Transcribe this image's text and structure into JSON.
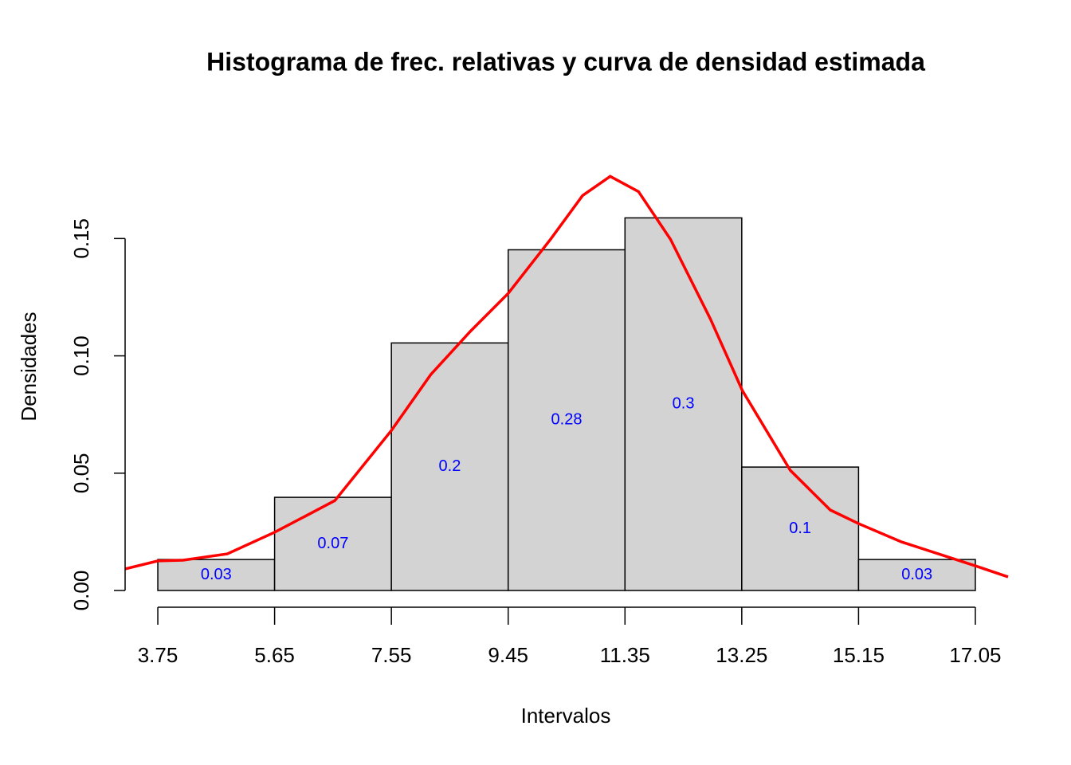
{
  "chart_data": {
    "type": "histogram",
    "title": "Histograma de frec. relativas y curva de densidad estimada",
    "x_label": "Intervalos",
    "y_label": "Densidades",
    "bins": [
      3.75,
      5.65,
      7.55,
      9.45,
      11.35,
      13.25,
      15.15,
      17.05
    ],
    "values": [
      0.0132,
      0.0397,
      0.1055,
      0.1452,
      0.1588,
      0.0526,
      0.0132
    ],
    "color": "#d3d3d3",
    "bar_labels": [
      0.03,
      0.07,
      0.2,
      0.28,
      0.3,
      0.1,
      0.03
    ],
    "bar_label_color": "#0000ff",
    "xlim": [
      3.218,
      17.582
    ],
    "ylim": [
      0,
      0.18
    ],
    "xticks": [
      3.75,
      5.65,
      7.55,
      9.45,
      11.35,
      13.25,
      15.15,
      17.05
    ],
    "yticks": [
      {
        "value": 0,
        "label": "0.00"
      },
      {
        "value": 0.05,
        "label": "0.05"
      },
      {
        "value": 0.1,
        "label": "0.10"
      },
      {
        "value": 0.15,
        "label": "0.15"
      }
    ],
    "curve": {
      "color": "#ff0000",
      "x": [
        3.218,
        3.75,
        4.16,
        4.88,
        5.65,
        6.63,
        7.55,
        8.19,
        8.84,
        9.45,
        10.14,
        10.66,
        11.11,
        11.57,
        12.09,
        12.74,
        13.26,
        14.04,
        14.69,
        15.15,
        15.85,
        17.05,
        17.582
      ],
      "values": [
        0.0092,
        0.0126,
        0.0129,
        0.0156,
        0.0248,
        0.0383,
        0.0682,
        0.092,
        0.1106,
        0.1266,
        0.1497,
        0.1683,
        0.1765,
        0.17,
        0.1497,
        0.1157,
        0.0852,
        0.0512,
        0.0343,
        0.0285,
        0.0207,
        0.0105,
        0.0058
      ]
    }
  }
}
